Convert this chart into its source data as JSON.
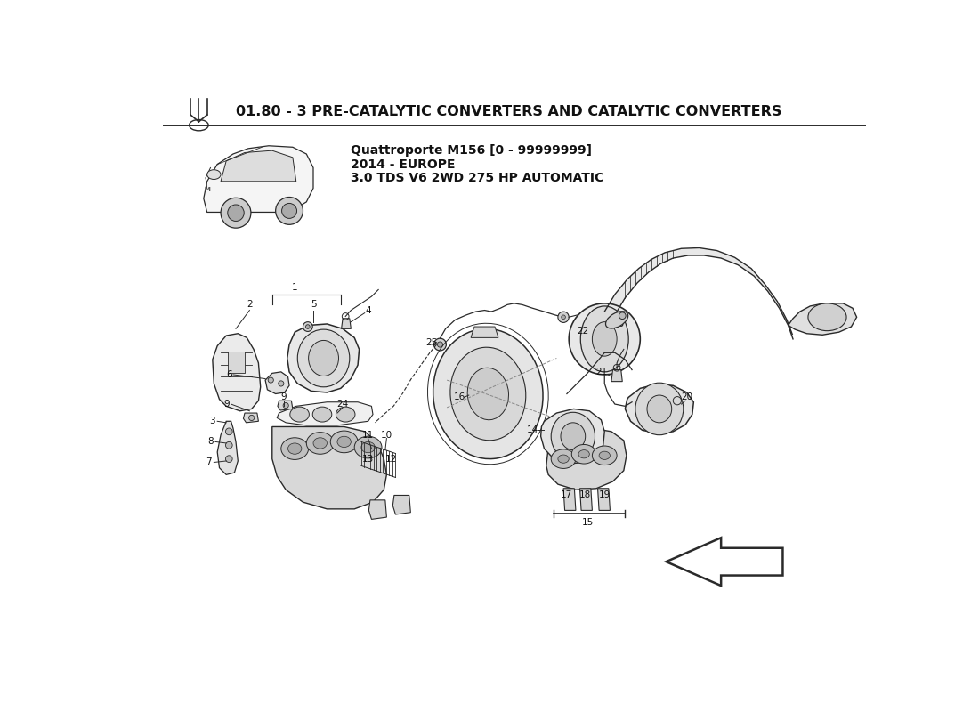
{
  "title": "01.80 - 3 PRE-CATALYTIC CONVERTERS AND CATALYTIC CONVERTERS",
  "subtitle_line1": "Quattroporte M156 [0 - 99999999]",
  "subtitle_line2": "2014 - EUROPE",
  "subtitle_line3": "3.0 TDS V6 2WD 275 HP AUTOMATIC",
  "background_color": "#ffffff",
  "line_color": "#2a2a2a",
  "title_fontsize": 11.5,
  "subtitle_fontsize": 10,
  "label_fontsize": 7.5,
  "figsize": [
    11.0,
    8.0
  ],
  "dpi": 100
}
